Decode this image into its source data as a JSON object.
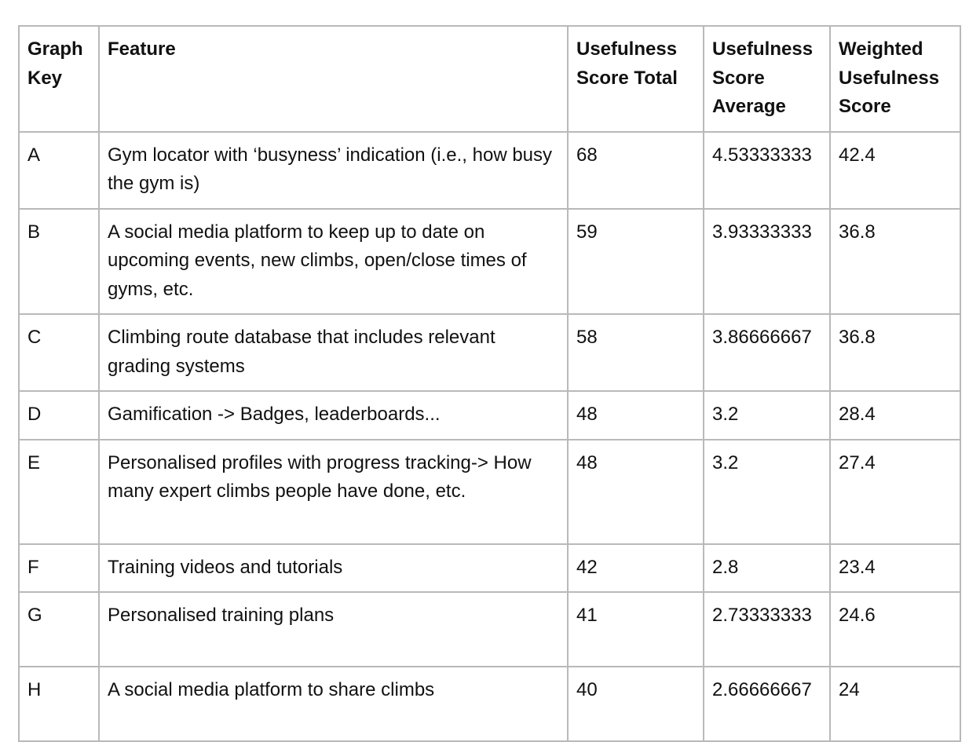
{
  "headers": {
    "graph_key": "Graph Key",
    "feature": "Feature",
    "usefulness_total": "Usefulness Score Total",
    "usefulness_average": "Usefulness Score Average",
    "weighted_usefulness": "Weighted Usefulness Score"
  },
  "rows": [
    {
      "key": "A",
      "feature": "Gym locator with ‘busyness’ indication (i.e., how busy the gym is)",
      "total": "68",
      "average": "4.53333333",
      "weighted": "42.4"
    },
    {
      "key": "B",
      "feature": "A social media platform to keep up to date on upcoming events, new climbs, open/close times of gyms, etc.",
      "total": "59",
      "average": "3.93333333",
      "weighted": "36.8"
    },
    {
      "key": "C",
      "feature": "Climbing route database that includes relevant grading systems",
      "total": "58",
      "average": "3.86666667",
      "weighted": "36.8"
    },
    {
      "key": "D",
      "feature": "Gamification -> Badges, leaderboards...",
      "total": "48",
      "average": "3.2",
      "weighted": "28.4"
    },
    {
      "key": "E",
      "feature": "Personalised profiles with progress tracking-> How many expert climbs people have done, etc.",
      "total": "48",
      "average": "3.2",
      "weighted": "27.4"
    },
    {
      "key": "F",
      "feature": "Training videos and tutorials",
      "total": "42",
      "average": "2.8",
      "weighted": "23.4"
    },
    {
      "key": "G",
      "feature": "Personalised training plans",
      "total": "41",
      "average": "2.73333333",
      "weighted": "24.6"
    },
    {
      "key": "H",
      "feature": "A social media platform to share climbs",
      "total": "40",
      "average": "2.66666667",
      "weighted": "24"
    }
  ]
}
